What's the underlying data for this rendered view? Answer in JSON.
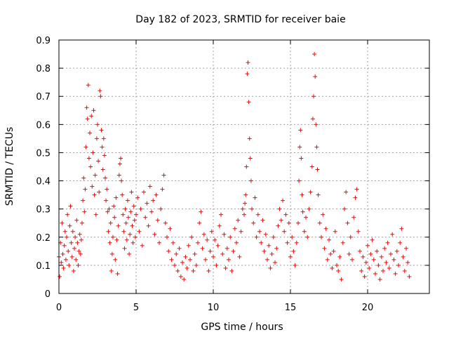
{
  "chart_data": {
    "type": "scatter",
    "title": "Day 182 of 2023, SRMTID for receiver baie",
    "xlabel": "GPS time / hours",
    "ylabel": "SRMTID / TECUs",
    "xlim": [
      0,
      24.0
    ],
    "ylim": [
      0,
      0.9
    ],
    "xticks": [
      0,
      5,
      10,
      15,
      20
    ],
    "yticks": [
      0,
      0.1,
      0.2,
      0.3,
      0.4,
      0.5,
      0.6,
      0.7,
      0.8,
      0.9
    ],
    "x_tick_labels": [
      "0",
      "5",
      "10",
      "15",
      "20"
    ],
    "y_tick_labels": [
      "0",
      "0.1",
      "0.2",
      "0.3",
      "0.4",
      "0.5",
      "0.6",
      "0.7",
      "0.8",
      "0.9"
    ],
    "grid": true,
    "marker": "+",
    "marker_color": "#ff0000",
    "series": [
      {
        "name": "SRMTID",
        "points": [
          [
            0.0,
            0.13
          ],
          [
            0.05,
            0.06
          ],
          [
            0.1,
            0.18
          ],
          [
            0.15,
            0.11
          ],
          [
            0.2,
            0.25
          ],
          [
            0.25,
            0.14
          ],
          [
            0.3,
            0.09
          ],
          [
            0.35,
            0.17
          ],
          [
            0.4,
            0.22
          ],
          [
            0.45,
            0.12
          ],
          [
            0.5,
            0.2
          ],
          [
            0.55,
            0.28
          ],
          [
            0.6,
            0.15
          ],
          [
            0.65,
            0.1
          ],
          [
            0.7,
            0.24
          ],
          [
            0.75,
            0.31
          ],
          [
            0.8,
            0.18
          ],
          [
            0.85,
            0.13
          ],
          [
            0.9,
            0.22
          ],
          [
            0.95,
            0.08
          ],
          [
            1.0,
            0.16
          ],
          [
            1.05,
            0.2
          ],
          [
            1.1,
            0.12
          ],
          [
            1.15,
            0.26
          ],
          [
            1.2,
            0.18
          ],
          [
            1.25,
            0.1
          ],
          [
            1.3,
            0.15
          ],
          [
            1.35,
            0.21
          ],
          [
            1.4,
            0.14
          ],
          [
            1.45,
            0.19
          ],
          [
            1.5,
            0.25
          ],
          [
            1.55,
            0.33
          ],
          [
            1.6,
            0.41
          ],
          [
            1.65,
            0.29
          ],
          [
            1.7,
            0.37
          ],
          [
            1.75,
            0.52
          ],
          [
            1.8,
            0.66
          ],
          [
            1.85,
            0.62
          ],
          [
            1.9,
            0.74
          ],
          [
            1.95,
            0.48
          ],
          [
            2.0,
            0.57
          ],
          [
            2.05,
            0.45
          ],
          [
            2.1,
            0.63
          ],
          [
            2.15,
            0.38
          ],
          [
            2.2,
            0.5
          ],
          [
            2.25,
            0.65
          ],
          [
            2.3,
            0.35
          ],
          [
            2.35,
            0.42
          ],
          [
            2.4,
            0.28
          ],
          [
            2.45,
            0.55
          ],
          [
            2.5,
            0.6
          ],
          [
            2.55,
            0.47
          ],
          [
            2.6,
            0.36
          ],
          [
            2.65,
            0.72
          ],
          [
            2.7,
            0.7
          ],
          [
            2.75,
            0.58
          ],
          [
            2.8,
            0.52
          ],
          [
            2.85,
            0.44
          ],
          [
            2.9,
            0.55
          ],
          [
            2.95,
            0.49
          ],
          [
            3.0,
            0.41
          ],
          [
            3.05,
            0.33
          ],
          [
            3.1,
            0.37
          ],
          [
            3.15,
            0.29
          ],
          [
            3.2,
            0.22
          ],
          [
            3.25,
            0.3
          ],
          [
            3.3,
            0.18
          ],
          [
            3.35,
            0.25
          ],
          [
            3.4,
            0.08
          ],
          [
            3.45,
            0.14
          ],
          [
            3.5,
            0.2
          ],
          [
            3.55,
            0.31
          ],
          [
            3.6,
            0.27
          ],
          [
            3.65,
            0.12
          ],
          [
            3.7,
            0.34
          ],
          [
            3.75,
            0.19
          ],
          [
            3.8,
            0.07
          ],
          [
            3.85,
            0.24
          ],
          [
            3.9,
            0.42
          ],
          [
            3.95,
            0.46
          ],
          [
            4.0,
            0.48
          ],
          [
            4.05,
            0.4
          ],
          [
            4.1,
            0.35
          ],
          [
            4.15,
            0.28
          ],
          [
            4.2,
            0.22
          ],
          [
            4.25,
            0.16
          ],
          [
            4.3,
            0.3
          ],
          [
            4.35,
            0.25
          ],
          [
            4.4,
            0.19
          ],
          [
            4.45,
            0.33
          ],
          [
            4.5,
            0.27
          ],
          [
            4.55,
            0.14
          ],
          [
            4.6,
            0.21
          ],
          [
            4.65,
            0.29
          ],
          [
            4.7,
            0.36
          ],
          [
            4.75,
            0.24
          ],
          [
            4.8,
            0.18
          ],
          [
            4.85,
            0.31
          ],
          [
            4.9,
            0.26
          ],
          [
            4.95,
            0.2
          ],
          [
            5.0,
            0.28
          ],
          [
            5.1,
            0.34
          ],
          [
            5.2,
            0.22
          ],
          [
            5.3,
            0.3
          ],
          [
            5.4,
            0.17
          ],
          [
            5.5,
            0.36
          ],
          [
            5.6,
            0.27
          ],
          [
            5.7,
            0.32
          ],
          [
            5.8,
            0.24
          ],
          [
            5.9,
            0.38
          ],
          [
            6.0,
            0.29
          ],
          [
            6.1,
            0.33
          ],
          [
            6.2,
            0.21
          ],
          [
            6.3,
            0.35
          ],
          [
            6.4,
            0.26
          ],
          [
            6.5,
            0.18
          ],
          [
            6.6,
            0.3
          ],
          [
            6.7,
            0.37
          ],
          [
            6.8,
            0.42
          ],
          [
            6.9,
            0.25
          ],
          [
            7.0,
            0.2
          ],
          [
            7.1,
            0.15
          ],
          [
            7.2,
            0.23
          ],
          [
            7.3,
            0.12
          ],
          [
            7.4,
            0.18
          ],
          [
            7.5,
            0.1
          ],
          [
            7.6,
            0.14
          ],
          [
            7.7,
            0.08
          ],
          [
            7.8,
            0.16
          ],
          [
            7.9,
            0.06
          ],
          [
            8.0,
            0.11
          ],
          [
            8.1,
            0.05
          ],
          [
            8.2,
            0.13
          ],
          [
            8.3,
            0.09
          ],
          [
            8.4,
            0.17
          ],
          [
            8.5,
            0.12
          ],
          [
            8.6,
            0.2
          ],
          [
            8.7,
            0.08
          ],
          [
            8.8,
            0.14
          ],
          [
            8.9,
            0.1
          ],
          [
            9.0,
            0.18
          ],
          [
            9.1,
            0.25
          ],
          [
            9.2,
            0.29
          ],
          [
            9.3,
            0.16
          ],
          [
            9.4,
            0.21
          ],
          [
            9.5,
            0.12
          ],
          [
            9.6,
            0.19
          ],
          [
            9.7,
            0.08
          ],
          [
            9.8,
            0.15
          ],
          [
            9.9,
            0.22
          ],
          [
            10.0,
            0.13
          ],
          [
            10.1,
            0.19
          ],
          [
            10.2,
            0.1
          ],
          [
            10.3,
            0.17
          ],
          [
            10.4,
            0.24
          ],
          [
            10.5,
            0.28
          ],
          [
            10.6,
            0.14
          ],
          [
            10.7,
            0.21
          ],
          [
            10.8,
            0.09
          ],
          [
            10.9,
            0.16
          ],
          [
            11.0,
            0.12
          ],
          [
            11.1,
            0.2
          ],
          [
            11.2,
            0.08
          ],
          [
            11.3,
            0.15
          ],
          [
            11.4,
            0.23
          ],
          [
            11.5,
            0.18
          ],
          [
            11.6,
            0.26
          ],
          [
            11.7,
            0.13
          ],
          [
            11.8,
            0.22
          ],
          [
            11.9,
            0.3
          ],
          [
            12.0,
            0.28
          ],
          [
            12.05,
            0.32
          ],
          [
            12.1,
            0.35
          ],
          [
            12.15,
            0.45
          ],
          [
            12.2,
            0.78
          ],
          [
            12.25,
            0.82
          ],
          [
            12.3,
            0.68
          ],
          [
            12.35,
            0.55
          ],
          [
            12.4,
            0.48
          ],
          [
            12.45,
            0.4
          ],
          [
            12.5,
            0.3
          ],
          [
            12.6,
            0.25
          ],
          [
            12.7,
            0.34
          ],
          [
            12.8,
            0.2
          ],
          [
            12.9,
            0.28
          ],
          [
            13.0,
            0.22
          ],
          [
            13.1,
            0.18
          ],
          [
            13.2,
            0.26
          ],
          [
            13.3,
            0.15
          ],
          [
            13.4,
            0.21
          ],
          [
            13.5,
            0.12
          ],
          [
            13.6,
            0.17
          ],
          [
            13.7,
            0.09
          ],
          [
            13.8,
            0.14
          ],
          [
            13.9,
            0.2
          ],
          [
            14.0,
            0.11
          ],
          [
            14.1,
            0.16
          ],
          [
            14.2,
            0.24
          ],
          [
            14.3,
            0.3
          ],
          [
            14.4,
            0.26
          ],
          [
            14.5,
            0.33
          ],
          [
            14.6,
            0.22
          ],
          [
            14.7,
            0.28
          ],
          [
            14.8,
            0.18
          ],
          [
            14.9,
            0.25
          ],
          [
            15.0,
            0.13
          ],
          [
            15.1,
            0.2
          ],
          [
            15.2,
            0.15
          ],
          [
            15.3,
            0.1
          ],
          [
            15.4,
            0.18
          ],
          [
            15.5,
            0.25
          ],
          [
            15.55,
            0.4
          ],
          [
            15.6,
            0.52
          ],
          [
            15.65,
            0.58
          ],
          [
            15.7,
            0.48
          ],
          [
            15.75,
            0.35
          ],
          [
            15.8,
            0.29
          ],
          [
            15.9,
            0.22
          ],
          [
            16.0,
            0.27
          ],
          [
            16.1,
            0.2
          ],
          [
            16.2,
            0.3
          ],
          [
            16.3,
            0.36
          ],
          [
            16.4,
            0.45
          ],
          [
            16.45,
            0.62
          ],
          [
            16.5,
            0.7
          ],
          [
            16.55,
            0.85
          ],
          [
            16.6,
            0.77
          ],
          [
            16.65,
            0.6
          ],
          [
            16.7,
            0.52
          ],
          [
            16.75,
            0.44
          ],
          [
            16.8,
            0.35
          ],
          [
            16.9,
            0.25
          ],
          [
            17.0,
            0.2
          ],
          [
            17.1,
            0.28
          ],
          [
            17.2,
            0.16
          ],
          [
            17.3,
            0.23
          ],
          [
            17.4,
            0.12
          ],
          [
            17.5,
            0.19
          ],
          [
            17.6,
            0.14
          ],
          [
            17.7,
            0.09
          ],
          [
            17.8,
            0.15
          ],
          [
            17.9,
            0.22
          ],
          [
            18.0,
            0.1
          ],
          [
            18.1,
            0.08
          ],
          [
            18.2,
            0.13
          ],
          [
            18.3,
            0.05
          ],
          [
            18.4,
            0.18
          ],
          [
            18.5,
            0.3
          ],
          [
            18.6,
            0.36
          ],
          [
            18.7,
            0.25
          ],
          [
            18.8,
            0.14
          ],
          [
            18.9,
            0.2
          ],
          [
            19.0,
            0.12
          ],
          [
            19.1,
            0.27
          ],
          [
            19.2,
            0.34
          ],
          [
            19.3,
            0.37
          ],
          [
            19.4,
            0.22
          ],
          [
            19.5,
            0.15
          ],
          [
            19.6,
            0.08
          ],
          [
            19.7,
            0.13
          ],
          [
            19.8,
            0.06
          ],
          [
            19.9,
            0.11
          ],
          [
            20.0,
            0.17
          ],
          [
            20.1,
            0.09
          ],
          [
            20.2,
            0.14
          ],
          [
            20.3,
            0.19
          ],
          [
            20.4,
            0.12
          ],
          [
            20.5,
            0.07
          ],
          [
            20.6,
            0.15
          ],
          [
            20.7,
            0.1
          ],
          [
            20.8,
            0.05
          ],
          [
            20.9,
            0.13
          ],
          [
            21.0,
            0.08
          ],
          [
            21.1,
            0.16
          ],
          [
            21.2,
            0.11
          ],
          [
            21.3,
            0.18
          ],
          [
            21.4,
            0.09
          ],
          [
            21.5,
            0.14
          ],
          [
            21.6,
            0.21
          ],
          [
            21.7,
            0.12
          ],
          [
            21.8,
            0.07
          ],
          [
            21.9,
            0.15
          ],
          [
            22.0,
            0.1
          ],
          [
            22.1,
            0.18
          ],
          [
            22.2,
            0.23
          ],
          [
            22.3,
            0.13
          ],
          [
            22.4,
            0.08
          ],
          [
            22.5,
            0.16
          ],
          [
            22.6,
            0.11
          ],
          [
            22.7,
            0.06
          ]
        ]
      }
    ]
  }
}
